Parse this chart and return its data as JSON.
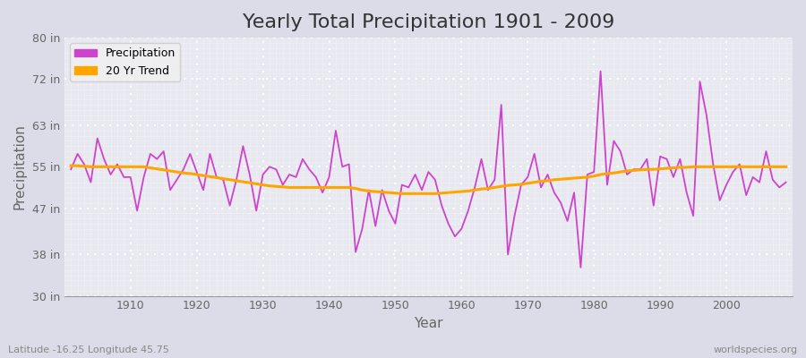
{
  "title": "Yearly Total Precipitation 1901 - 2009",
  "xlabel": "Year",
  "ylabel": "Precipitation",
  "years": [
    1901,
    1902,
    1903,
    1904,
    1905,
    1906,
    1907,
    1908,
    1909,
    1910,
    1911,
    1912,
    1913,
    1914,
    1915,
    1916,
    1917,
    1918,
    1919,
    1920,
    1921,
    1922,
    1923,
    1924,
    1925,
    1926,
    1927,
    1928,
    1929,
    1930,
    1931,
    1932,
    1933,
    1934,
    1935,
    1936,
    1937,
    1938,
    1939,
    1940,
    1941,
    1942,
    1943,
    1944,
    1945,
    1946,
    1947,
    1948,
    1949,
    1950,
    1951,
    1952,
    1953,
    1954,
    1955,
    1956,
    1957,
    1958,
    1959,
    1960,
    1961,
    1962,
    1963,
    1964,
    1965,
    1966,
    1967,
    1968,
    1969,
    1970,
    1971,
    1972,
    1973,
    1974,
    1975,
    1976,
    1977,
    1978,
    1979,
    1980,
    1981,
    1982,
    1983,
    1984,
    1985,
    1986,
    1987,
    1988,
    1989,
    1990,
    1991,
    1992,
    1993,
    1994,
    1995,
    1996,
    1997,
    1998,
    1999,
    2000,
    2001,
    2002,
    2003,
    2004,
    2005,
    2006,
    2007,
    2008,
    2009
  ],
  "precip_in": [
    54.5,
    57.5,
    55.5,
    52.0,
    60.5,
    56.5,
    53.5,
    55.5,
    53.0,
    53.0,
    46.5,
    53.0,
    57.5,
    56.5,
    58.0,
    50.5,
    52.5,
    54.5,
    57.5,
    54.0,
    50.5,
    57.5,
    53.0,
    52.5,
    47.5,
    52.5,
    59.0,
    53.5,
    46.5,
    53.5,
    55.0,
    54.5,
    51.5,
    53.5,
    53.0,
    56.5,
    54.5,
    53.0,
    50.0,
    53.0,
    62.0,
    55.0,
    55.5,
    38.5,
    43.0,
    50.5,
    43.5,
    50.5,
    46.5,
    44.0,
    51.5,
    51.0,
    53.5,
    50.5,
    54.0,
    52.5,
    47.5,
    44.0,
    41.5,
    43.0,
    46.5,
    51.0,
    56.5,
    50.5,
    52.5,
    67.0,
    38.0,
    45.5,
    51.5,
    53.0,
    57.5,
    51.0,
    53.5,
    50.0,
    48.0,
    44.5,
    50.0,
    35.5,
    53.5,
    54.0,
    73.5,
    51.5,
    60.0,
    58.0,
    53.5,
    54.5,
    54.5,
    56.5,
    47.5,
    57.0,
    56.5,
    53.0,
    56.5,
    50.0,
    45.5,
    71.5,
    65.0,
    55.5,
    48.5,
    51.5,
    54.0,
    55.5,
    49.5,
    53.0,
    52.0,
    58.0,
    52.5,
    51.0,
    52.0
  ],
  "trend_years": [
    1901,
    1902,
    1903,
    1904,
    1905,
    1906,
    1907,
    1908,
    1909,
    1910,
    1911,
    1912,
    1913,
    1914,
    1915,
    1916,
    1917,
    1918,
    1919,
    1920,
    1921,
    1922,
    1923,
    1924,
    1925,
    1926,
    1927,
    1928,
    1929,
    1930,
    1931,
    1932,
    1933,
    1934,
    1935,
    1936,
    1937,
    1938,
    1939,
    1940,
    1941,
    1942,
    1943,
    1944,
    1945,
    1946,
    1947,
    1948,
    1949,
    1950,
    1951,
    1952,
    1953,
    1954,
    1955,
    1956,
    1957,
    1958,
    1959,
    1960,
    1961,
    1962,
    1963,
    1964,
    1965,
    1966,
    1967,
    1968,
    1969,
    1970,
    1971,
    1972,
    1973,
    1974,
    1975,
    1976,
    1977,
    1978,
    1979,
    1980,
    1981,
    1982,
    1983,
    1984,
    1985,
    1986,
    1987,
    1988,
    1989,
    1990,
    1991,
    1992,
    1993,
    1994,
    1995,
    1996,
    1997,
    1998,
    1999,
    2000,
    2001,
    2002,
    2003,
    2004,
    2005,
    2006,
    2007,
    2008,
    2009
  ],
  "trend_in": [
    55.2,
    55.2,
    55.1,
    55.0,
    55.0,
    55.0,
    55.0,
    55.0,
    55.0,
    55.0,
    55.0,
    55.0,
    54.8,
    54.6,
    54.4,
    54.2,
    54.0,
    53.8,
    53.7,
    53.5,
    53.3,
    53.1,
    52.9,
    52.7,
    52.5,
    52.3,
    52.1,
    51.9,
    51.7,
    51.5,
    51.3,
    51.2,
    51.1,
    51.0,
    51.0,
    51.0,
    51.0,
    51.0,
    51.0,
    51.0,
    51.0,
    51.0,
    51.0,
    50.8,
    50.5,
    50.3,
    50.2,
    50.1,
    50.0,
    49.9,
    49.8,
    49.8,
    49.8,
    49.8,
    49.8,
    49.8,
    49.9,
    50.0,
    50.1,
    50.2,
    50.3,
    50.5,
    50.7,
    50.8,
    51.0,
    51.2,
    51.4,
    51.5,
    51.6,
    51.8,
    52.0,
    52.2,
    52.3,
    52.5,
    52.6,
    52.7,
    52.8,
    52.9,
    53.0,
    53.2,
    53.5,
    53.7,
    53.8,
    54.0,
    54.2,
    54.3,
    54.4,
    54.5,
    54.5,
    54.6,
    54.7,
    54.8,
    54.9,
    54.9,
    55.0,
    55.0,
    55.0,
    55.0,
    55.0,
    55.0,
    55.0,
    55.0,
    55.0,
    55.0,
    55.0,
    55.0,
    55.0,
    55.0,
    55.0
  ],
  "precip_color": "#CC44CC",
  "trend_color": "#FFA500",
  "plot_bg_color": "#E8E8F0",
  "fig_bg_color": "#DCDCE8",
  "grid_color": "#FFFFFF",
  "ylim": [
    30,
    80
  ],
  "yticks": [
    30,
    38,
    47,
    55,
    63,
    72,
    80
  ],
  "ytick_labels": [
    "30 in",
    "38 in",
    "47 in",
    "55 in",
    "63 in",
    "72 in",
    "80 in"
  ],
  "xlim": [
    1900,
    2010
  ],
  "xticks": [
    1910,
    1920,
    1930,
    1940,
    1950,
    1960,
    1970,
    1980,
    1990,
    2000
  ],
  "footer_left": "Latitude -16.25 Longitude 45.75",
  "footer_right": "worldspecies.org",
  "title_fontsize": 16,
  "axis_label_fontsize": 11,
  "tick_fontsize": 9,
  "legend_fontsize": 9,
  "footer_fontsize": 8
}
